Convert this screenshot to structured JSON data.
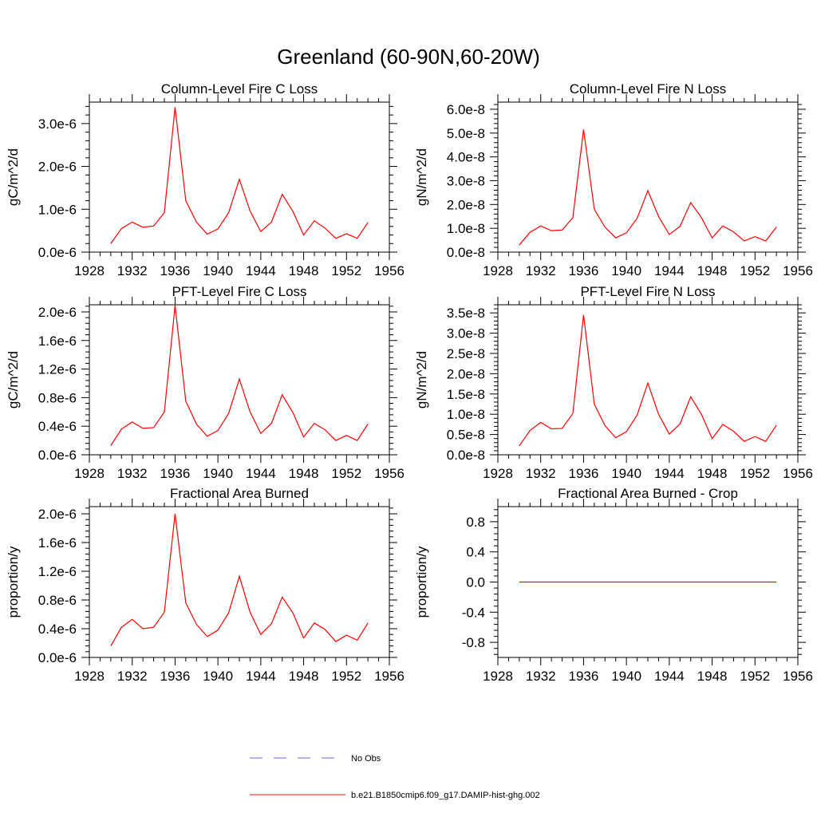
{
  "page_title": "Greenland (60-90N,60-20W)",
  "colors": {
    "model": "#ff0000",
    "obs": "#6a6adb",
    "axis": "#000000"
  },
  "legend": {
    "obs_label": "No Obs",
    "model_label": "b.e21.B1850cmip6.f09_g17.DAMIP-hist-ghg.002"
  },
  "chart_data": [
    {
      "type": "line",
      "title": "Column-Level Fire C Loss",
      "ylabel": "gC/m^2/d",
      "xlim": [
        1928,
        1956
      ],
      "ylim": [
        0,
        3.5e-06
      ],
      "xticks": [
        1928,
        1932,
        1936,
        1940,
        1944,
        1948,
        1952,
        1956
      ],
      "yticks": [
        0,
        1e-06,
        2e-06,
        3e-06
      ],
      "ytick_labels": [
        "0.0e-6",
        "1.0e-6",
        "2.0e-6",
        "3.0e-6"
      ],
      "x": [
        1930,
        1931,
        1932,
        1933,
        1934,
        1935,
        1936,
        1937,
        1938,
        1939,
        1940,
        1941,
        1942,
        1943,
        1944,
        1945,
        1946,
        1947,
        1948,
        1949,
        1950,
        1951,
        1952,
        1953,
        1954
      ],
      "series": [
        {
          "values": [
            2e-07,
            5.5e-07,
            7e-07,
            5.8e-07,
            6.1e-07,
            9.2e-07,
            3.38e-06,
            1.2e-06,
            7e-07,
            4.2e-07,
            5.4e-07,
            9.2e-07,
            1.7e-06,
            9.6e-07,
            4.8e-07,
            7e-07,
            1.35e-06,
            9.5e-07,
            4e-07,
            7.3e-07,
            5.6e-07,
            3.2e-07,
            4.3e-07,
            3.2e-07,
            6.9e-07
          ]
        }
      ]
    },
    {
      "type": "line",
      "title": "Column-Level Fire N Loss",
      "ylabel": "gN/m^2/d",
      "xlim": [
        1928,
        1956
      ],
      "ylim": [
        0,
        6.3e-08
      ],
      "xticks": [
        1928,
        1932,
        1936,
        1940,
        1944,
        1948,
        1952,
        1956
      ],
      "yticks": [
        0,
        1e-08,
        2e-08,
        3e-08,
        4e-08,
        5e-08,
        6e-08
      ],
      "ytick_labels": [
        "0.0e-8",
        "1.0e-8",
        "2.0e-8",
        "3.0e-8",
        "4.0e-8",
        "5.0e-8",
        "6.0e-8"
      ],
      "x": [
        1930,
        1931,
        1932,
        1933,
        1934,
        1935,
        1936,
        1937,
        1938,
        1939,
        1940,
        1941,
        1942,
        1943,
        1944,
        1945,
        1946,
        1947,
        1948,
        1949,
        1950,
        1951,
        1952,
        1953,
        1954
      ],
      "series": [
        {
          "values": [
            3e-09,
            8.3e-09,
            1.1e-08,
            9e-09,
            9.3e-09,
            1.45e-08,
            5.15e-08,
            1.8e-08,
            1.05e-08,
            6e-09,
            8.1e-09,
            1.42e-08,
            2.58e-08,
            1.5e-08,
            7.4e-09,
            1.08e-08,
            2.08e-08,
            1.45e-08,
            6e-09,
            1.1e-08,
            8.5e-09,
            4.7e-09,
            6.5e-09,
            4.7e-09,
            1.05e-08
          ]
        }
      ]
    },
    {
      "type": "line",
      "title": "PFT-Level Fire C Loss",
      "ylabel": "gC/m^2/d",
      "xlim": [
        1928,
        1956
      ],
      "ylim": [
        0,
        2.1e-06
      ],
      "xticks": [
        1928,
        1932,
        1936,
        1940,
        1944,
        1948,
        1952,
        1956
      ],
      "yticks": [
        0,
        4e-07,
        8e-07,
        1.2e-06,
        1.6e-06,
        2e-06
      ],
      "ytick_labels": [
        "0.0e-6",
        "0.4e-6",
        "0.8e-6",
        "1.2e-6",
        "1.6e-6",
        "2.0e-6"
      ],
      "x": [
        1930,
        1931,
        1932,
        1933,
        1934,
        1935,
        1936,
        1937,
        1938,
        1939,
        1940,
        1941,
        1942,
        1943,
        1944,
        1945,
        1946,
        1947,
        1948,
        1949,
        1950,
        1951,
        1952,
        1953,
        1954
      ],
      "series": [
        {
          "values": [
            1.3e-07,
            3.6e-07,
            4.6e-07,
            3.7e-07,
            3.8e-07,
            6e-07,
            2.09e-06,
            7.5e-07,
            4.3e-07,
            2.6e-07,
            3.4e-07,
            5.8e-07,
            1.06e-06,
            6e-07,
            3e-07,
            4.4e-07,
            8.4e-07,
            5.9e-07,
            2.5e-07,
            4.4e-07,
            3.5e-07,
            2e-07,
            2.7e-07,
            2e-07,
            4.3e-07
          ]
        }
      ]
    },
    {
      "type": "line",
      "title": "PFT-Level Fire N Loss",
      "ylabel": "gN/m^2/d",
      "xlim": [
        1928,
        1956
      ],
      "ylim": [
        0,
        3.7e-08
      ],
      "xticks": [
        1928,
        1932,
        1936,
        1940,
        1944,
        1948,
        1952,
        1956
      ],
      "yticks": [
        0,
        5e-09,
        1e-08,
        1.5e-08,
        2e-08,
        2.5e-08,
        3e-08,
        3.5e-08
      ],
      "ytick_labels": [
        "0.0e-8",
        "0.5e-8",
        "1.0e-8",
        "1.5e-8",
        "2.0e-8",
        "2.5e-8",
        "3.0e-8",
        "3.5e-8"
      ],
      "x": [
        1930,
        1931,
        1932,
        1933,
        1934,
        1935,
        1936,
        1937,
        1938,
        1939,
        1940,
        1941,
        1942,
        1943,
        1944,
        1945,
        1946,
        1947,
        1948,
        1949,
        1950,
        1951,
        1952,
        1953,
        1954
      ],
      "series": [
        {
          "values": [
            2.2e-09,
            6e-09,
            8e-09,
            6.4e-09,
            6.5e-09,
            1.02e-08,
            3.45e-08,
            1.25e-08,
            7.2e-09,
            4.2e-09,
            5.7e-09,
            9.8e-09,
            1.77e-08,
            1e-08,
            5.1e-09,
            7.6e-09,
            1.43e-08,
            1e-08,
            4e-09,
            7.5e-09,
            5.8e-09,
            3.3e-09,
            4.5e-09,
            3.3e-09,
            7.3e-09
          ]
        }
      ]
    },
    {
      "type": "line",
      "title": "Fractional Area Burned",
      "ylabel": "proportion/y",
      "xlim": [
        1928,
        1956
      ],
      "ylim": [
        0,
        2.1e-06
      ],
      "xticks": [
        1928,
        1932,
        1936,
        1940,
        1944,
        1948,
        1952,
        1956
      ],
      "yticks": [
        0,
        4e-07,
        8e-07,
        1.2e-06,
        1.6e-06,
        2e-06
      ],
      "ytick_labels": [
        "0.0e-6",
        "0.4e-6",
        "0.8e-6",
        "1.2e-6",
        "1.6e-6",
        "2.0e-6"
      ],
      "x": [
        1930,
        1931,
        1932,
        1933,
        1934,
        1935,
        1936,
        1937,
        1938,
        1939,
        1940,
        1941,
        1942,
        1943,
        1944,
        1945,
        1946,
        1947,
        1948,
        1949,
        1950,
        1951,
        1952,
        1953,
        1954
      ],
      "series": [
        {
          "values": [
            1.6e-07,
            4.2e-07,
            5.3e-07,
            4e-07,
            4.2e-07,
            6.3e-07,
            2e-06,
            7.6e-07,
            4.6e-07,
            2.9e-07,
            3.8e-07,
            6.2e-07,
            1.13e-06,
            6.3e-07,
            3.2e-07,
            4.7e-07,
            8.4e-07,
            6.2e-07,
            2.7e-07,
            4.8e-07,
            3.9e-07,
            2.2e-07,
            3.1e-07,
            2.4e-07,
            4.8e-07
          ]
        }
      ]
    },
    {
      "type": "line",
      "title": "Fractional Area Burned - Crop",
      "ylabel": "proportion/y",
      "xlim": [
        1928,
        1956
      ],
      "ylim": [
        -1.0,
        1.0
      ],
      "xticks": [
        1928,
        1932,
        1936,
        1940,
        1944,
        1948,
        1952,
        1956
      ],
      "yticks": [
        -0.8,
        -0.4,
        0,
        0.4,
        0.8
      ],
      "ytick_labels": [
        "-0.8",
        "-0.4",
        "0.0",
        "0.4",
        "0.8"
      ],
      "x": [
        1930,
        1931,
        1932,
        1933,
        1934,
        1935,
        1936,
        1937,
        1938,
        1939,
        1940,
        1941,
        1942,
        1943,
        1944,
        1945,
        1946,
        1947,
        1948,
        1949,
        1950,
        1951,
        1952,
        1953,
        1954
      ],
      "series": [
        {
          "values": [
            0,
            0,
            0,
            0,
            0,
            0,
            0,
            0,
            0,
            0,
            0,
            0,
            0,
            0,
            0,
            0,
            0,
            0,
            0,
            0,
            0,
            0,
            0,
            0,
            0
          ]
        }
      ]
    }
  ]
}
